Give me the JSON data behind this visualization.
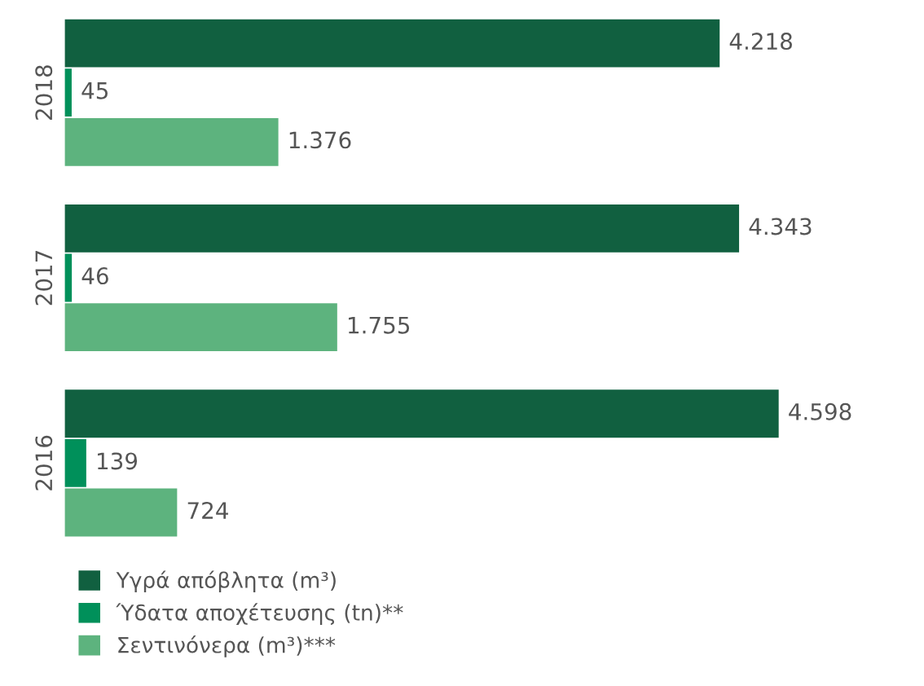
{
  "chart_data": {
    "type": "bar",
    "orientation": "horizontal",
    "categories": [
      "2018",
      "2017",
      "2016"
    ],
    "series": [
      {
        "name": "Υγρά απόβλητα (m³)",
        "color": "#116040",
        "values": [
          4218,
          4343,
          4598
        ],
        "value_labels": [
          "4.218",
          "4.343",
          "4.598"
        ]
      },
      {
        "name": "Ύδατα αποχέτευσης (tn)**",
        "color": "#00905a",
        "values": [
          45,
          46,
          139
        ],
        "value_labels": [
          "45",
          "46",
          "139"
        ]
      },
      {
        "name": "Σεντινόνερα (m³)***",
        "color": "#5db37e",
        "values": [
          1376,
          1755,
          724
        ],
        "value_labels": [
          "1.376",
          "1.755",
          "724"
        ]
      }
    ],
    "legend": "bottom left",
    "grid": false
  }
}
